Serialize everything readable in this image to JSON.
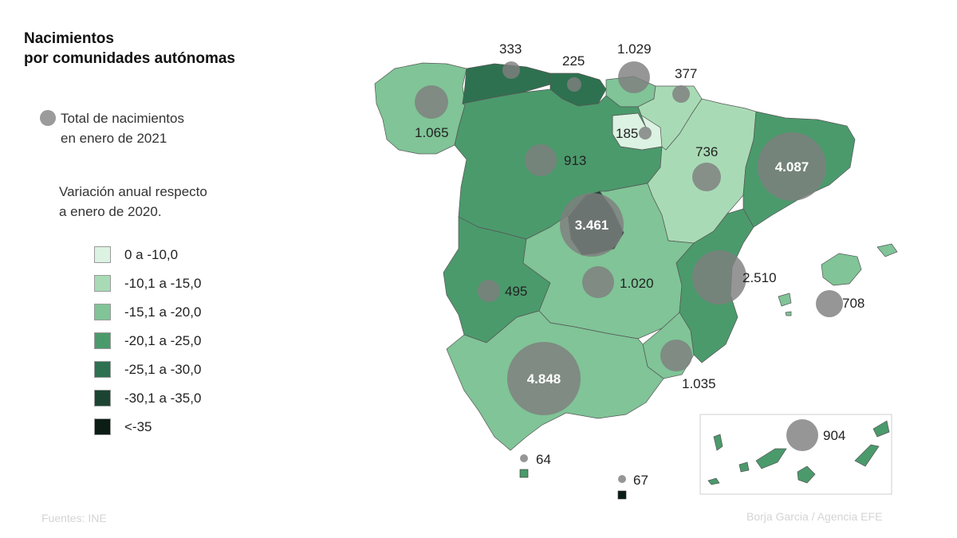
{
  "title": {
    "line1": "Nacimientos",
    "line2": "por comunidades autónomas"
  },
  "legend": {
    "circle_line1": "Total de nacimientos",
    "circle_line2": "en enero de 2021",
    "variation_line1": "Variación anual respecto",
    "variation_line2": "a enero de 2020.",
    "circle_color": "#9b9b9b",
    "classes": [
      {
        "label": "0 a -10,0",
        "color": "#dcf2e2"
      },
      {
        "label": "-10,1 a -15,0",
        "color": "#a8dbb5"
      },
      {
        "label": "-15,1 a -20,0",
        "color": "#80c497"
      },
      {
        "label": "-20,1 a -25,0",
        "color": "#4b9a6c"
      },
      {
        "label": "-25,1 a -30,0",
        "color": "#2e7150"
      },
      {
        "label": "-30,1 a -35,0",
        "color": "#1b4532"
      },
      {
        "label": "<-35",
        "color": "#0b1d15"
      }
    ]
  },
  "regions": {
    "galicia": {
      "value": "1.065",
      "class": 2
    },
    "asturias": {
      "value": "333",
      "class": 4
    },
    "cantabria": {
      "value": "225",
      "class": 4
    },
    "pais_vasco": {
      "value": "1.029",
      "class": 2
    },
    "navarra": {
      "value": "377",
      "class": 1
    },
    "la_rioja": {
      "value": "185",
      "class": 0
    },
    "castilla_leon": {
      "value": "913",
      "class": 3
    },
    "aragon": {
      "value": "736",
      "class": 1
    },
    "cataluna": {
      "value": "4.087",
      "class": 3
    },
    "madrid": {
      "value": "3.461",
      "class": 5
    },
    "extremadura": {
      "value": "495",
      "class": 3
    },
    "castilla_la_mancha": {
      "value": "1.020",
      "class": 2
    },
    "comunidad_valenciana": {
      "value": "2.510",
      "class": 3
    },
    "baleares": {
      "value": "708",
      "class": 2
    },
    "murcia": {
      "value": "1.035",
      "class": 2
    },
    "andalucia": {
      "value": "4.848",
      "class": 2
    },
    "canarias": {
      "value": "904",
      "class": 3
    },
    "ceuta": {
      "value": "64",
      "class": 3
    },
    "melilla": {
      "value": "67",
      "class": 6
    }
  },
  "footer": {
    "source": "Fuentes: INE",
    "credit": "Borja Garcia / Agencia EFE"
  }
}
